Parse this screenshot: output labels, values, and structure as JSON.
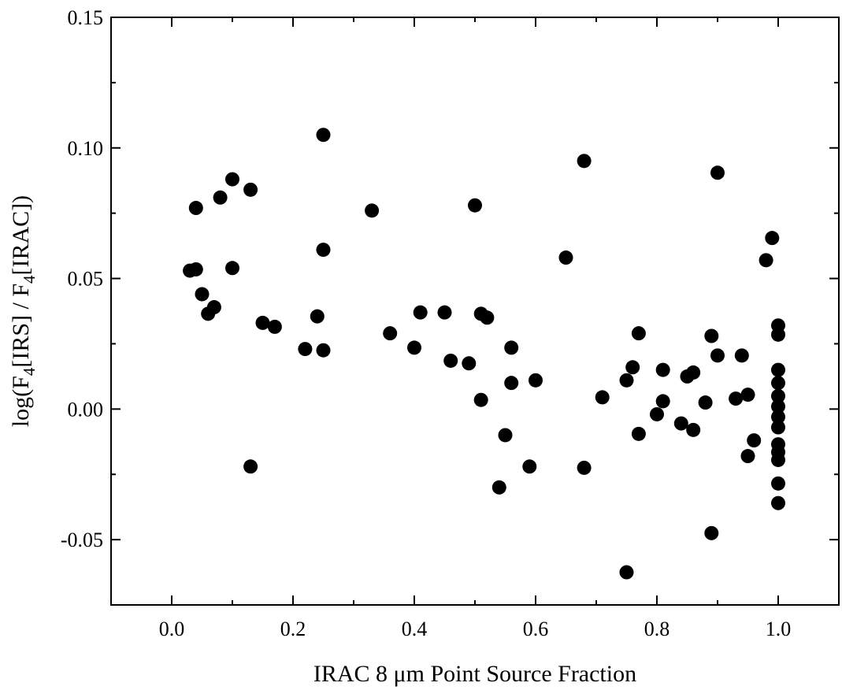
{
  "chart_data": {
    "type": "scatter",
    "xlabel": "IRAC 8 μm Point Source Fraction",
    "ylabel": {
      "parts": [
        "log(F",
        "4",
        "[IRS] / F",
        "4",
        "[IRAC])"
      ],
      "full": "log(F4[IRS] / F4[IRAC])"
    },
    "xlim": [
      -0.1,
      1.1
    ],
    "ylim": [
      -0.075,
      0.15
    ],
    "xticks": [
      0.0,
      0.2,
      0.4,
      0.6,
      0.8,
      1.0
    ],
    "xtick_labels": [
      "0.0",
      "0.2",
      "0.4",
      "0.6",
      "0.8",
      "1.0"
    ],
    "yticks": [
      -0.05,
      0.0,
      0.05,
      0.1,
      0.15
    ],
    "ytick_labels": [
      "-0.05",
      "0.00",
      "0.05",
      "0.10",
      "0.15"
    ],
    "grid": false,
    "marker_color": "#000000",
    "series": [
      {
        "points": [
          [
            0.03,
            0.053
          ],
          [
            0.04,
            0.0535
          ],
          [
            0.04,
            0.077
          ],
          [
            0.05,
            0.044
          ],
          [
            0.06,
            0.0365
          ],
          [
            0.07,
            0.039
          ],
          [
            0.08,
            0.081
          ],
          [
            0.1,
            0.088
          ],
          [
            0.1,
            0.054
          ],
          [
            0.13,
            0.084
          ],
          [
            0.13,
            -0.022
          ],
          [
            0.15,
            0.033
          ],
          [
            0.17,
            0.0315
          ],
          [
            0.22,
            0.023
          ],
          [
            0.24,
            0.0355
          ],
          [
            0.25,
            0.105
          ],
          [
            0.25,
            0.061
          ],
          [
            0.25,
            0.0225
          ],
          [
            0.33,
            0.076
          ],
          [
            0.36,
            0.029
          ],
          [
            0.4,
            0.0235
          ],
          [
            0.41,
            0.037
          ],
          [
            0.45,
            0.037
          ],
          [
            0.46,
            0.0185
          ],
          [
            0.49,
            0.0175
          ],
          [
            0.5,
            0.078
          ],
          [
            0.51,
            0.0365
          ],
          [
            0.51,
            0.0035
          ],
          [
            0.52,
            0.035
          ],
          [
            0.54,
            -0.03
          ],
          [
            0.55,
            -0.01
          ],
          [
            0.56,
            0.0235
          ],
          [
            0.56,
            0.01
          ],
          [
            0.59,
            -0.022
          ],
          [
            0.6,
            0.011
          ],
          [
            0.65,
            0.058
          ],
          [
            0.68,
            0.095
          ],
          [
            0.68,
            -0.0225
          ],
          [
            0.71,
            0.0045
          ],
          [
            0.75,
            0.011
          ],
          [
            0.75,
            -0.0625
          ],
          [
            0.76,
            0.016
          ],
          [
            0.77,
            0.029
          ],
          [
            0.77,
            -0.0095
          ],
          [
            0.8,
            -0.002
          ],
          [
            0.81,
            0.015
          ],
          [
            0.81,
            0.003
          ],
          [
            0.84,
            -0.0055
          ],
          [
            0.85,
            0.0125
          ],
          [
            0.86,
            0.014
          ],
          [
            0.86,
            -0.008
          ],
          [
            0.88,
            0.0025
          ],
          [
            0.89,
            0.028
          ],
          [
            0.89,
            -0.0475
          ],
          [
            0.9,
            0.0905
          ],
          [
            0.9,
            0.0205
          ],
          [
            0.93,
            0.004
          ],
          [
            0.94,
            0.0205
          ],
          [
            0.95,
            0.0055
          ],
          [
            0.95,
            -0.018
          ],
          [
            0.96,
            -0.012
          ],
          [
            0.98,
            0.057
          ],
          [
            0.99,
            0.0655
          ],
          [
            1.0,
            0.032
          ],
          [
            1.0,
            0.0285
          ],
          [
            1.0,
            0.015
          ],
          [
            1.0,
            0.01
          ],
          [
            1.0,
            0.005
          ],
          [
            1.0,
            0.001
          ],
          [
            1.0,
            -0.003
          ],
          [
            1.0,
            -0.007
          ],
          [
            1.0,
            -0.0135
          ],
          [
            1.0,
            -0.0165
          ],
          [
            1.0,
            -0.0195
          ],
          [
            1.0,
            -0.0285
          ],
          [
            1.0,
            -0.036
          ]
        ]
      }
    ]
  }
}
